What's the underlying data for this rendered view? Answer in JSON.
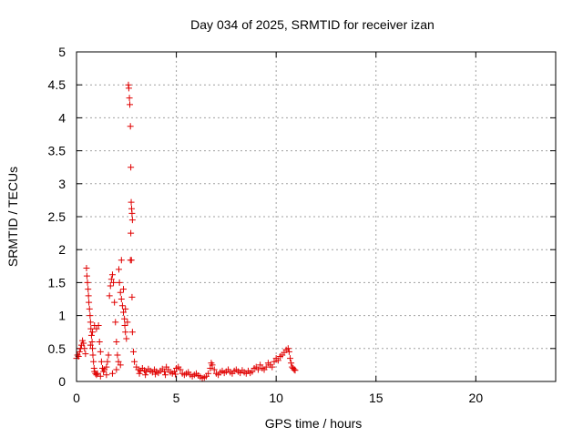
{
  "chart_data": {
    "type": "scatter",
    "title": "Day 034 of 2025, SRMTID for receiver izan",
    "xlabel": "GPS time / hours",
    "ylabel": "SRMTID / TECUs",
    "xlim": [
      0,
      24
    ],
    "ylim": [
      0,
      5
    ],
    "x_ticks": [
      0,
      5,
      10,
      15,
      20
    ],
    "x_tick_labels": [
      "0",
      "5",
      "10",
      "15",
      "20"
    ],
    "y_ticks": [
      0,
      0.5,
      1,
      1.5,
      2,
      2.5,
      3,
      3.5,
      4,
      4.5,
      5
    ],
    "y_tick_labels": [
      "0",
      "0.5",
      "1",
      "1.5",
      "2",
      "2.5",
      "3",
      "3.5",
      "4",
      "4.5",
      "5"
    ],
    "grid": true,
    "marker": "+",
    "color": "#e00000",
    "series": [
      {
        "name": "SRMTID",
        "points": [
          [
            0.0,
            0.35
          ],
          [
            0.05,
            0.4
          ],
          [
            0.1,
            0.38
          ],
          [
            0.15,
            0.45
          ],
          [
            0.2,
            0.5
          ],
          [
            0.25,
            0.55
          ],
          [
            0.3,
            0.62
          ],
          [
            0.35,
            0.58
          ],
          [
            0.4,
            0.5
          ],
          [
            0.45,
            0.42
          ],
          [
            0.5,
            1.72
          ],
          [
            0.52,
            1.6
          ],
          [
            0.55,
            1.5
          ],
          [
            0.58,
            1.4
          ],
          [
            0.6,
            1.3
          ],
          [
            0.62,
            1.2
          ],
          [
            0.65,
            1.1
          ],
          [
            0.68,
            1.0
          ],
          [
            0.7,
            0.9
          ],
          [
            0.72,
            0.8
          ],
          [
            0.75,
            0.7
          ],
          [
            0.78,
            0.6
          ],
          [
            0.8,
            0.5
          ],
          [
            0.82,
            0.4
          ],
          [
            0.85,
            0.3
          ],
          [
            0.88,
            0.2
          ],
          [
            0.9,
            0.15
          ],
          [
            0.95,
            0.12
          ],
          [
            1.0,
            0.1
          ],
          [
            1.05,
            0.12
          ],
          [
            0.7,
            0.55
          ],
          [
            0.8,
            0.75
          ],
          [
            0.9,
            0.85
          ],
          [
            1.0,
            0.8
          ],
          [
            1.1,
            0.85
          ],
          [
            1.15,
            0.6
          ],
          [
            1.2,
            0.45
          ],
          [
            1.25,
            0.3
          ],
          [
            1.3,
            0.2
          ],
          [
            1.35,
            0.15
          ],
          [
            1.4,
            0.18
          ],
          [
            1.5,
            0.22
          ],
          [
            1.55,
            0.3
          ],
          [
            1.6,
            0.4
          ],
          [
            1.65,
            1.3
          ],
          [
            1.7,
            1.45
          ],
          [
            1.75,
            1.55
          ],
          [
            1.8,
            1.62
          ],
          [
            1.85,
            1.5
          ],
          [
            1.9,
            1.2
          ],
          [
            1.95,
            0.9
          ],
          [
            2.0,
            0.6
          ],
          [
            2.05,
            0.4
          ],
          [
            2.1,
            0.3
          ],
          [
            2.12,
            1.7
          ],
          [
            2.15,
            1.5
          ],
          [
            2.2,
            1.35
          ],
          [
            2.25,
            1.25
          ],
          [
            2.3,
            1.15
          ],
          [
            2.35,
            1.05
          ],
          [
            2.4,
            0.95
          ],
          [
            2.42,
            0.85
          ],
          [
            2.45,
            0.75
          ],
          [
            2.5,
            0.65
          ],
          [
            2.25,
            1.84
          ],
          [
            2.35,
            1.4
          ],
          [
            2.45,
            1.1
          ],
          [
            2.55,
            0.9
          ],
          [
            2.6,
            4.5
          ],
          [
            2.62,
            4.45
          ],
          [
            2.65,
            4.3
          ],
          [
            2.67,
            4.2
          ],
          [
            2.7,
            3.87
          ],
          [
            2.72,
            3.25
          ],
          [
            2.74,
            2.72
          ],
          [
            2.76,
            2.62
          ],
          [
            2.78,
            2.55
          ],
          [
            2.8,
            2.45
          ],
          [
            2.72,
            2.25
          ],
          [
            2.7,
            1.84
          ],
          [
            2.75,
            1.84
          ],
          [
            2.78,
            1.28
          ],
          [
            2.8,
            0.75
          ],
          [
            2.85,
            0.45
          ],
          [
            2.9,
            0.3
          ],
          [
            3.0,
            0.22
          ],
          [
            3.1,
            0.18
          ],
          [
            3.2,
            0.16
          ],
          [
            3.3,
            0.2
          ],
          [
            3.4,
            0.17
          ],
          [
            3.5,
            0.15
          ],
          [
            3.6,
            0.19
          ],
          [
            3.7,
            0.16
          ],
          [
            3.8,
            0.14
          ],
          [
            3.9,
            0.18
          ],
          [
            4.0,
            0.15
          ],
          [
            4.1,
            0.13
          ],
          [
            4.2,
            0.16
          ],
          [
            4.3,
            0.19
          ],
          [
            4.4,
            0.15
          ],
          [
            4.5,
            0.22
          ],
          [
            4.6,
            0.18
          ],
          [
            4.7,
            0.14
          ],
          [
            4.8,
            0.12
          ],
          [
            4.9,
            0.15
          ],
          [
            5.0,
            0.2
          ],
          [
            5.1,
            0.22
          ],
          [
            5.2,
            0.18
          ],
          [
            5.3,
            0.12
          ],
          [
            5.4,
            0.1
          ],
          [
            5.5,
            0.12
          ],
          [
            5.6,
            0.14
          ],
          [
            5.7,
            0.1
          ],
          [
            5.8,
            0.08
          ],
          [
            5.9,
            0.1
          ],
          [
            6.0,
            0.12
          ],
          [
            6.1,
            0.09
          ],
          [
            6.2,
            0.07
          ],
          [
            6.3,
            0.05
          ],
          [
            6.4,
            0.06
          ],
          [
            6.5,
            0.08
          ],
          [
            6.6,
            0.12
          ],
          [
            6.7,
            0.2
          ],
          [
            6.75,
            0.28
          ],
          [
            6.8,
            0.25
          ],
          [
            6.9,
            0.18
          ],
          [
            7.0,
            0.12
          ],
          [
            7.1,
            0.1
          ],
          [
            7.2,
            0.14
          ],
          [
            7.3,
            0.16
          ],
          [
            7.4,
            0.13
          ],
          [
            7.5,
            0.15
          ],
          [
            7.6,
            0.18
          ],
          [
            7.7,
            0.14
          ],
          [
            7.8,
            0.12
          ],
          [
            7.9,
            0.16
          ],
          [
            8.0,
            0.18
          ],
          [
            8.1,
            0.15
          ],
          [
            8.2,
            0.13
          ],
          [
            8.3,
            0.17
          ],
          [
            8.4,
            0.14
          ],
          [
            8.5,
            0.12
          ],
          [
            8.6,
            0.16
          ],
          [
            8.7,
            0.13
          ],
          [
            8.8,
            0.15
          ],
          [
            8.9,
            0.2
          ],
          [
            9.0,
            0.22
          ],
          [
            9.1,
            0.18
          ],
          [
            9.2,
            0.25
          ],
          [
            9.3,
            0.2
          ],
          [
            9.4,
            0.18
          ],
          [
            9.5,
            0.22
          ],
          [
            9.6,
            0.28
          ],
          [
            9.7,
            0.25
          ],
          [
            9.8,
            0.22
          ],
          [
            9.9,
            0.3
          ],
          [
            10.0,
            0.35
          ],
          [
            10.1,
            0.32
          ],
          [
            10.2,
            0.38
          ],
          [
            10.3,
            0.4
          ],
          [
            10.4,
            0.44
          ],
          [
            10.5,
            0.48
          ],
          [
            10.6,
            0.5
          ],
          [
            10.65,
            0.45
          ],
          [
            10.7,
            0.35
          ],
          [
            10.75,
            0.28
          ],
          [
            10.8,
            0.22
          ],
          [
            10.85,
            0.2
          ],
          [
            10.9,
            0.18
          ],
          [
            10.95,
            0.17
          ],
          [
            1.2,
            0.08
          ],
          [
            1.5,
            0.1
          ],
          [
            1.8,
            0.12
          ],
          [
            2.0,
            0.18
          ],
          [
            2.2,
            0.25
          ],
          [
            3.15,
            0.12
          ],
          [
            3.45,
            0.1
          ],
          [
            3.95,
            0.11
          ],
          [
            4.45,
            0.1
          ],
          [
            4.95,
            0.11
          ]
        ]
      }
    ]
  }
}
